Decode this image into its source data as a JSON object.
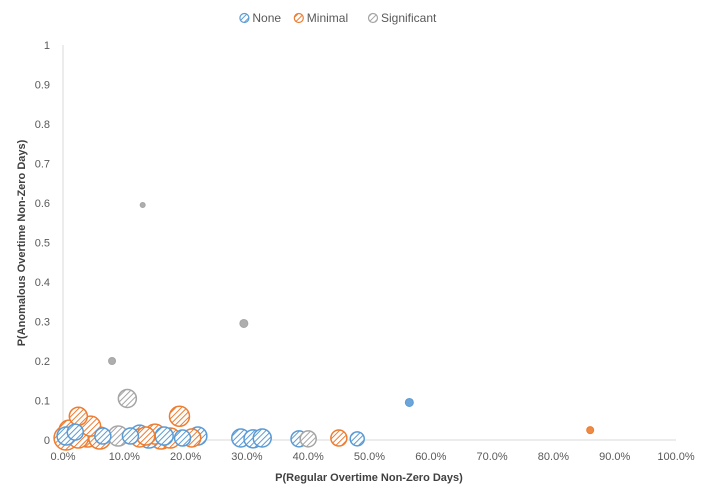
{
  "chart_data": {
    "type": "scatter",
    "subtype": "bubble",
    "title": "",
    "xlabel": "P(Regular Overtime Non-Zero Days)",
    "ylabel": "P(Anomalous Overtime Non-Zero Days)",
    "xlim": [
      0,
      1
    ],
    "ylim": [
      0,
      1
    ],
    "x_tick_labels": [
      "0.0%",
      "10.0%",
      "20.0%",
      "30.0%",
      "40.0%",
      "50.0%",
      "60.0%",
      "70.0%",
      "80.0%",
      "90.0%",
      "100.0%"
    ],
    "y_tick_labels": [
      "0",
      "0.1",
      "0.2",
      "0.3",
      "0.4",
      "0.5",
      "0.6",
      "0.7",
      "0.8",
      "0.9",
      "1"
    ],
    "grid": false,
    "legend_position": "top",
    "legend": [
      "None",
      "Minimal",
      "Significant"
    ],
    "series": [
      {
        "name": "None",
        "color": "#5b9bd5",
        "points": [
          {
            "x": 0.005,
            "y": 0.01,
            "size": 9
          },
          {
            "x": 0.02,
            "y": 0.02,
            "size": 8
          },
          {
            "x": 0.065,
            "y": 0.01,
            "size": 8
          },
          {
            "x": 0.11,
            "y": 0.01,
            "size": 8
          },
          {
            "x": 0.125,
            "y": 0.015,
            "size": 9
          },
          {
            "x": 0.14,
            "y": 0.005,
            "size": 10
          },
          {
            "x": 0.165,
            "y": 0.01,
            "size": 9
          },
          {
            "x": 0.195,
            "y": 0.005,
            "size": 8
          },
          {
            "x": 0.22,
            "y": 0.01,
            "size": 9
          },
          {
            "x": 0.29,
            "y": 0.005,
            "size": 9
          },
          {
            "x": 0.31,
            "y": 0.003,
            "size": 9
          },
          {
            "x": 0.325,
            "y": 0.005,
            "size": 9
          },
          {
            "x": 0.385,
            "y": 0.003,
            "size": 8
          },
          {
            "x": 0.48,
            "y": 0.003,
            "size": 7
          },
          {
            "x": 0.565,
            "y": 0.095,
            "size": 4
          }
        ]
      },
      {
        "name": "Minimal",
        "color": "#ed7d31",
        "points": [
          {
            "x": 0.005,
            "y": 0.005,
            "size": 12
          },
          {
            "x": 0.01,
            "y": 0.025,
            "size": 10
          },
          {
            "x": 0.025,
            "y": 0.005,
            "size": 10
          },
          {
            "x": 0.025,
            "y": 0.06,
            "size": 9
          },
          {
            "x": 0.04,
            "y": 0.01,
            "size": 11
          },
          {
            "x": 0.045,
            "y": 0.035,
            "size": 10
          },
          {
            "x": 0.06,
            "y": 0.005,
            "size": 11
          },
          {
            "x": 0.125,
            "y": 0.005,
            "size": 9
          },
          {
            "x": 0.135,
            "y": 0.01,
            "size": 9
          },
          {
            "x": 0.15,
            "y": 0.015,
            "size": 10
          },
          {
            "x": 0.16,
            "y": 0.005,
            "size": 11
          },
          {
            "x": 0.175,
            "y": 0.005,
            "size": 10
          },
          {
            "x": 0.19,
            "y": 0.06,
            "size": 10
          },
          {
            "x": 0.21,
            "y": 0.005,
            "size": 9
          },
          {
            "x": 0.45,
            "y": 0.005,
            "size": 8
          },
          {
            "x": 0.86,
            "y": 0.025,
            "size": 3.5
          }
        ]
      },
      {
        "name": "Significant",
        "color": "#a5a5a5",
        "points": [
          {
            "x": 0.13,
            "y": 0.595,
            "size": 2.5
          },
          {
            "x": 0.295,
            "y": 0.295,
            "size": 4
          },
          {
            "x": 0.08,
            "y": 0.2,
            "size": 3.5
          },
          {
            "x": 0.105,
            "y": 0.105,
            "size": 9
          },
          {
            "x": 0.09,
            "y": 0.01,
            "size": 10
          },
          {
            "x": 0.4,
            "y": 0.003,
            "size": 8
          }
        ]
      }
    ]
  }
}
